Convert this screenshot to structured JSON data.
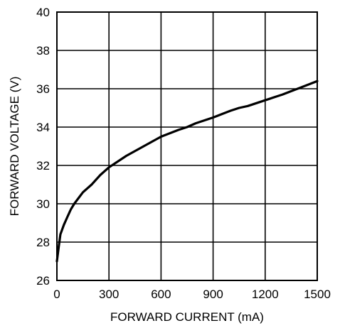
{
  "chart_data": {
    "type": "line",
    "title": "",
    "xlabel": "FORWARD CURRENT (mA)",
    "ylabel": "FORWARD VOLTAGE (V)",
    "xlim": [
      0,
      1500
    ],
    "ylim": [
      26,
      40
    ],
    "xticks": [
      0,
      300,
      600,
      900,
      1200,
      1500
    ],
    "yticks": [
      26,
      28,
      30,
      32,
      34,
      36,
      38,
      40
    ],
    "grid": true,
    "legend": "none",
    "line_color": "#000000",
    "series": [
      {
        "x": [
          0,
          10,
          20,
          40,
          60,
          80,
          100,
          125,
          150,
          200,
          250,
          300,
          400,
          500,
          600,
          700,
          750,
          800,
          900,
          1000,
          1050,
          1100,
          1200,
          1300,
          1400,
          1500
        ],
        "y": [
          27.0,
          27.7,
          28.4,
          28.9,
          29.3,
          29.7,
          30.0,
          30.3,
          30.6,
          31.0,
          31.5,
          31.9,
          32.5,
          33.0,
          33.5,
          33.85,
          34.0,
          34.2,
          34.5,
          34.85,
          35.0,
          35.1,
          35.4,
          35.7,
          36.05,
          36.4
        ]
      }
    ]
  }
}
